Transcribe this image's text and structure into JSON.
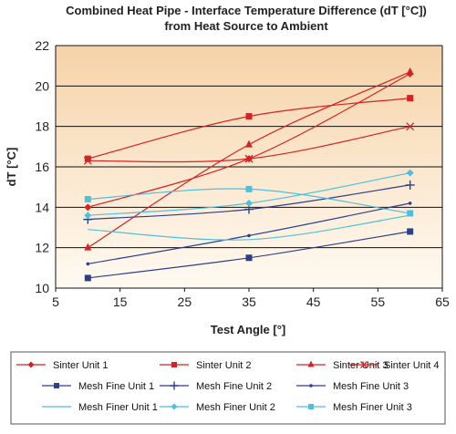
{
  "chart_data": {
    "type": "line",
    "title": "Combined Heat Pipe - Interface Temperature Difference (dT [°C])",
    "subtitle": "from Heat Source to Ambient",
    "xlabel": "Test Angle [°]",
    "ylabel": "dT [°C]",
    "xlim": [
      5,
      65
    ],
    "ylim": [
      10,
      22
    ],
    "xticks": [
      "5",
      "15",
      "25",
      "35",
      "45",
      "55",
      "65"
    ],
    "yticks": [
      "10",
      "12",
      "14",
      "16",
      "18",
      "20",
      "22"
    ],
    "grid": "horizontal",
    "legend_position": "bottom",
    "background": {
      "top_color": "#f6d3a8",
      "bottom_color": "#fffaf2"
    },
    "series": [
      {
        "name": "Sinter Unit 1",
        "color": "#d62222",
        "marker": "diamond",
        "x": [
          10,
          35,
          60
        ],
        "y": [
          14.0,
          16.4,
          20.6
        ]
      },
      {
        "name": "Sinter Unit 2",
        "color": "#d62222",
        "marker": "square",
        "x": [
          10,
          35,
          60
        ],
        "y": [
          16.4,
          18.5,
          19.4
        ]
      },
      {
        "name": "Sinter Unit 3",
        "color": "#d62222",
        "marker": "triangle",
        "x": [
          10,
          35,
          60
        ],
        "y": [
          12.0,
          17.1,
          20.7
        ]
      },
      {
        "name": "Sinter Unit 4",
        "color": "#d62222",
        "marker": "x",
        "x": [
          10,
          35,
          60
        ],
        "y": [
          16.3,
          16.4,
          18.0
        ]
      },
      {
        "name": "Mesh Fine Unit 1",
        "color": "#2b3f8c",
        "marker": "square",
        "x": [
          10,
          35,
          60
        ],
        "y": [
          10.5,
          11.5,
          12.8
        ]
      },
      {
        "name": "Mesh Fine Unit 2",
        "color": "#2b3f8c",
        "marker": "plus",
        "x": [
          10,
          35,
          60
        ],
        "y": [
          13.4,
          13.9,
          15.1
        ]
      },
      {
        "name": "Mesh Fine Unit 3",
        "color": "#2b3f8c",
        "marker": "dot",
        "x": [
          10,
          35,
          60
        ],
        "y": [
          11.2,
          12.6,
          14.2
        ]
      },
      {
        "name": "Mesh Finer Unit 1",
        "color": "#4ec0dc",
        "marker": "none",
        "x": [
          10,
          35,
          60
        ],
        "y": [
          12.9,
          12.4,
          13.6
        ]
      },
      {
        "name": "Mesh Finer Unit 2",
        "color": "#4ec0dc",
        "marker": "diamond",
        "x": [
          10,
          35,
          60
        ],
        "y": [
          13.6,
          14.2,
          15.7
        ]
      },
      {
        "name": "Mesh Finer Unit 3",
        "color": "#4ec0dc",
        "marker": "square",
        "x": [
          10,
          35,
          60
        ],
        "y": [
          14.4,
          14.9,
          13.7
        ]
      }
    ]
  }
}
